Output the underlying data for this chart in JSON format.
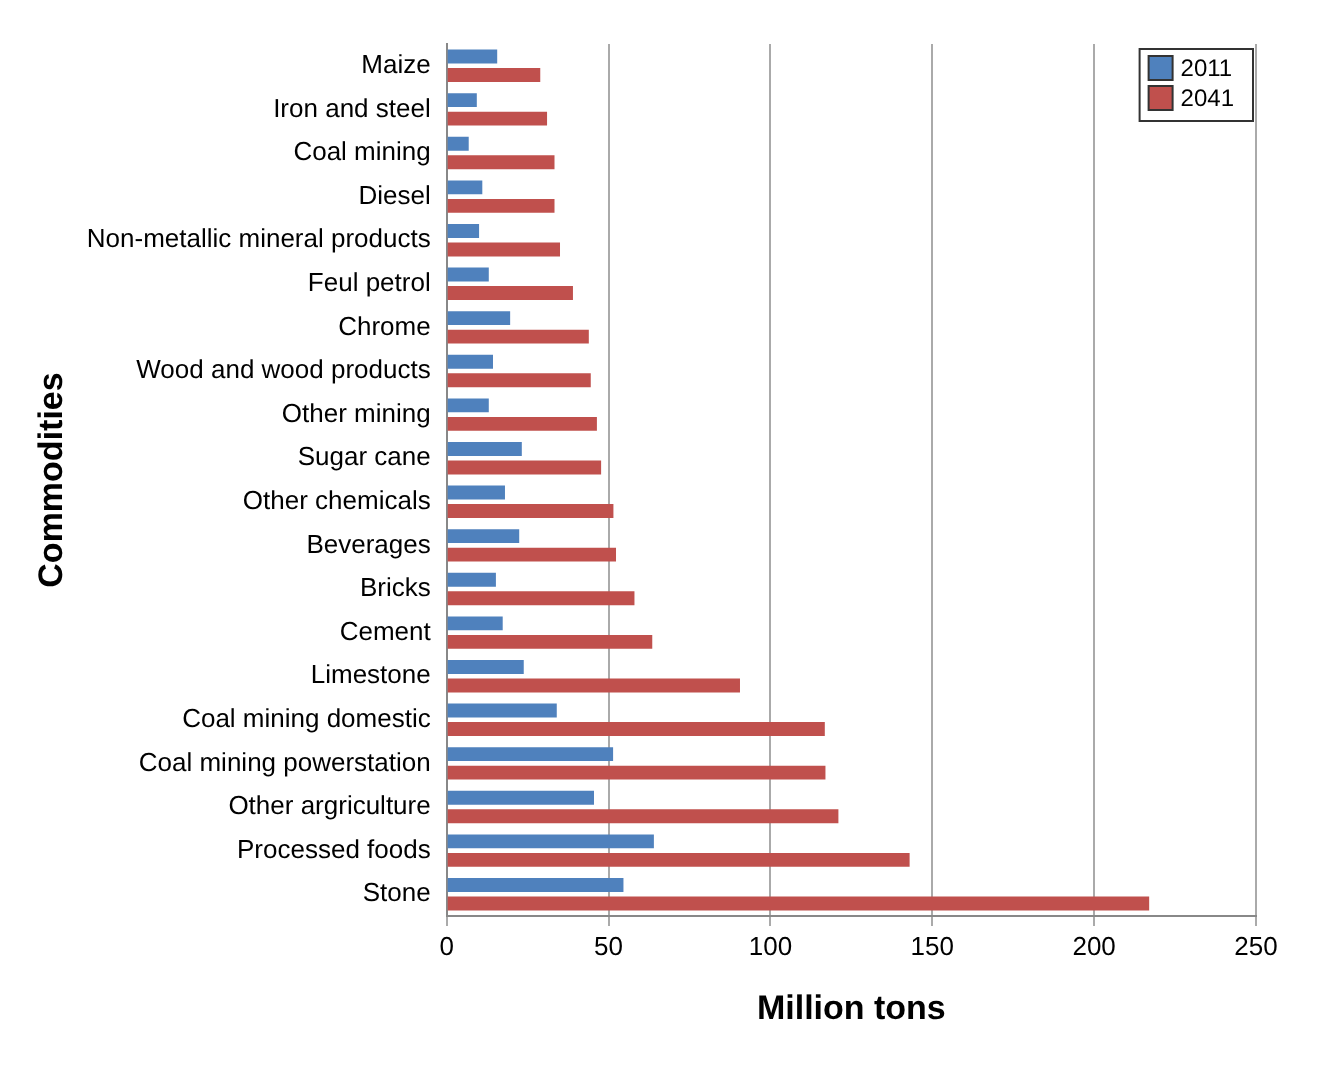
{
  "chart_data": {
    "type": "bar",
    "orientation": "horizontal",
    "xlabel": "Million tons",
    "ylabel": "Commodities",
    "categories": [
      "Maize",
      "Iron and steel",
      "Coal mining",
      "Diesel",
      "Non-metallic mineral products",
      "Feul petrol",
      "Chrome",
      "Wood and wood products",
      "Other mining",
      "Sugar cane",
      "Other chemicals",
      "Beverages",
      "Bricks",
      "Cement",
      "Limestone",
      "Coal mining domestic",
      "Coal mining powerstation",
      "Other argriculture",
      "Processed foods",
      "Stone"
    ],
    "series": [
      {
        "name": "2011",
        "color": "#4f81bd",
        "values": [
          15.6,
          9.3,
          6.8,
          11,
          10,
          13,
          19.6,
          14.3,
          13,
          23.2,
          18,
          22.4,
          15.2,
          17.3,
          23.8,
          34,
          51.4,
          45.5,
          64,
          54.6
        ]
      },
      {
        "name": "2041",
        "color": "#c0504d",
        "values": [
          28.9,
          31,
          33.3,
          33.3,
          35,
          39,
          43.9,
          44.5,
          46.4,
          47.7,
          51.5,
          52.3,
          58,
          63.5,
          90.6,
          116.8,
          117,
          121,
          143,
          217
        ]
      }
    ],
    "xlim": [
      0,
      250
    ],
    "xticks": [
      0,
      50,
      100,
      150,
      200,
      250
    ],
    "grid": "x",
    "legend": "top right"
  }
}
